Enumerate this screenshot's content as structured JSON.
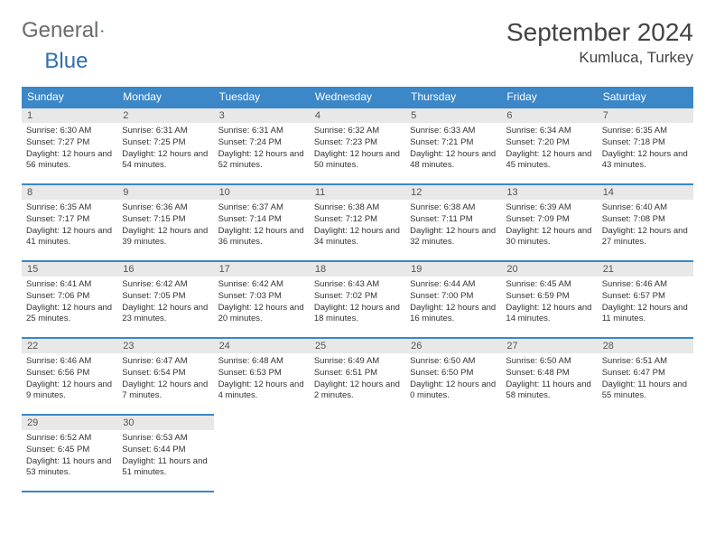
{
  "logo": {
    "text_gray": "General",
    "text_blue": "Blue"
  },
  "title": "September 2024",
  "location": "Kumluca, Turkey",
  "colors": {
    "header_bg": "#3b87c8",
    "header_fg": "#ffffff",
    "daynum_bg": "#e8e8e8",
    "border": "#3b87c8",
    "logo_gray": "#6b6b6b",
    "logo_blue": "#2f6fb0"
  },
  "weekdays": [
    "Sunday",
    "Monday",
    "Tuesday",
    "Wednesday",
    "Thursday",
    "Friday",
    "Saturday"
  ],
  "weeks": [
    [
      {
        "n": "1",
        "sr": "6:30 AM",
        "ss": "7:27 PM",
        "dl": "12 hours and 56 minutes."
      },
      {
        "n": "2",
        "sr": "6:31 AM",
        "ss": "7:25 PM",
        "dl": "12 hours and 54 minutes."
      },
      {
        "n": "3",
        "sr": "6:31 AM",
        "ss": "7:24 PM",
        "dl": "12 hours and 52 minutes."
      },
      {
        "n": "4",
        "sr": "6:32 AM",
        "ss": "7:23 PM",
        "dl": "12 hours and 50 minutes."
      },
      {
        "n": "5",
        "sr": "6:33 AM",
        "ss": "7:21 PM",
        "dl": "12 hours and 48 minutes."
      },
      {
        "n": "6",
        "sr": "6:34 AM",
        "ss": "7:20 PM",
        "dl": "12 hours and 45 minutes."
      },
      {
        "n": "7",
        "sr": "6:35 AM",
        "ss": "7:18 PM",
        "dl": "12 hours and 43 minutes."
      }
    ],
    [
      {
        "n": "8",
        "sr": "6:35 AM",
        "ss": "7:17 PM",
        "dl": "12 hours and 41 minutes."
      },
      {
        "n": "9",
        "sr": "6:36 AM",
        "ss": "7:15 PM",
        "dl": "12 hours and 39 minutes."
      },
      {
        "n": "10",
        "sr": "6:37 AM",
        "ss": "7:14 PM",
        "dl": "12 hours and 36 minutes."
      },
      {
        "n": "11",
        "sr": "6:38 AM",
        "ss": "7:12 PM",
        "dl": "12 hours and 34 minutes."
      },
      {
        "n": "12",
        "sr": "6:38 AM",
        "ss": "7:11 PM",
        "dl": "12 hours and 32 minutes."
      },
      {
        "n": "13",
        "sr": "6:39 AM",
        "ss": "7:09 PM",
        "dl": "12 hours and 30 minutes."
      },
      {
        "n": "14",
        "sr": "6:40 AM",
        "ss": "7:08 PM",
        "dl": "12 hours and 27 minutes."
      }
    ],
    [
      {
        "n": "15",
        "sr": "6:41 AM",
        "ss": "7:06 PM",
        "dl": "12 hours and 25 minutes."
      },
      {
        "n": "16",
        "sr": "6:42 AM",
        "ss": "7:05 PM",
        "dl": "12 hours and 23 minutes."
      },
      {
        "n": "17",
        "sr": "6:42 AM",
        "ss": "7:03 PM",
        "dl": "12 hours and 20 minutes."
      },
      {
        "n": "18",
        "sr": "6:43 AM",
        "ss": "7:02 PM",
        "dl": "12 hours and 18 minutes."
      },
      {
        "n": "19",
        "sr": "6:44 AM",
        "ss": "7:00 PM",
        "dl": "12 hours and 16 minutes."
      },
      {
        "n": "20",
        "sr": "6:45 AM",
        "ss": "6:59 PM",
        "dl": "12 hours and 14 minutes."
      },
      {
        "n": "21",
        "sr": "6:46 AM",
        "ss": "6:57 PM",
        "dl": "12 hours and 11 minutes."
      }
    ],
    [
      {
        "n": "22",
        "sr": "6:46 AM",
        "ss": "6:56 PM",
        "dl": "12 hours and 9 minutes."
      },
      {
        "n": "23",
        "sr": "6:47 AM",
        "ss": "6:54 PM",
        "dl": "12 hours and 7 minutes."
      },
      {
        "n": "24",
        "sr": "6:48 AM",
        "ss": "6:53 PM",
        "dl": "12 hours and 4 minutes."
      },
      {
        "n": "25",
        "sr": "6:49 AM",
        "ss": "6:51 PM",
        "dl": "12 hours and 2 minutes."
      },
      {
        "n": "26",
        "sr": "6:50 AM",
        "ss": "6:50 PM",
        "dl": "12 hours and 0 minutes."
      },
      {
        "n": "27",
        "sr": "6:50 AM",
        "ss": "6:48 PM",
        "dl": "11 hours and 58 minutes."
      },
      {
        "n": "28",
        "sr": "6:51 AM",
        "ss": "6:47 PM",
        "dl": "11 hours and 55 minutes."
      }
    ],
    [
      {
        "n": "29",
        "sr": "6:52 AM",
        "ss": "6:45 PM",
        "dl": "11 hours and 53 minutes."
      },
      {
        "n": "30",
        "sr": "6:53 AM",
        "ss": "6:44 PM",
        "dl": "11 hours and 51 minutes."
      },
      null,
      null,
      null,
      null,
      null
    ]
  ],
  "labels": {
    "sunrise": "Sunrise:",
    "sunset": "Sunset:",
    "daylight": "Daylight:"
  }
}
